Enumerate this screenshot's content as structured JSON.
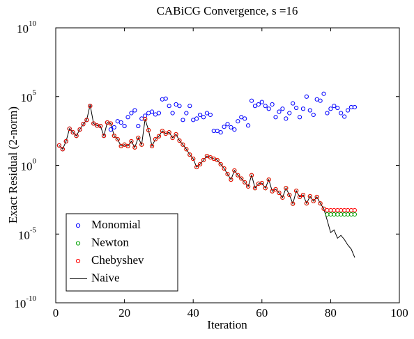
{
  "chart_data": {
    "type": "scatter",
    "title": "CABiCG Convergence, s =16",
    "xlabel": "Iteration",
    "ylabel": "Exact Residual (2-norm)",
    "xlim": [
      0,
      100
    ],
    "xticks": [
      0,
      20,
      40,
      60,
      80,
      100
    ],
    "ylim": [
      1e-10,
      10000000000.0
    ],
    "yscale": "log",
    "yticks": [
      {
        "value": 1e-10,
        "label": "10",
        "exponent": "-10"
      },
      {
        "value": 1e-05,
        "label": "10",
        "exponent": "-5"
      },
      {
        "value": 1,
        "label": "10",
        "exponent": "0"
      },
      {
        "value": 100000.0,
        "label": "10",
        "exponent": "5"
      },
      {
        "value": 10000000000.0,
        "label": "10",
        "exponent": "10"
      }
    ],
    "legend": "lower left",
    "x": [
      1,
      2,
      3,
      4,
      5,
      6,
      7,
      8,
      9,
      10,
      11,
      12,
      13,
      14,
      15,
      16,
      17,
      18,
      19,
      20,
      21,
      22,
      23,
      24,
      25,
      26,
      27,
      28,
      29,
      30,
      31,
      32,
      33,
      34,
      35,
      36,
      37,
      38,
      39,
      40,
      41,
      42,
      43,
      44,
      45,
      46,
      47,
      48,
      49,
      50,
      51,
      52,
      53,
      54,
      55,
      56,
      57,
      58,
      59,
      60,
      61,
      62,
      63,
      64,
      65,
      66,
      67,
      68,
      69,
      70,
      71,
      72,
      73,
      74,
      75,
      76,
      77,
      78,
      79,
      80,
      81,
      82,
      83,
      84,
      85,
      86,
      87
    ],
    "series": [
      {
        "name": "Monomial",
        "color": "#0000ff",
        "style": "markers",
        "values": [
          28,
          15,
          56,
          460,
          250,
          140,
          400,
          1000,
          2000,
          21000,
          1100,
          790,
          720,
          140,
          1300,
          400,
          580,
          1600,
          1300,
          720,
          3200,
          6300,
          10000,
          720,
          2500,
          4000,
          6300,
          7900,
          5000,
          6300,
          63000,
          71000,
          21000,
          6300,
          27000,
          21000,
          2000,
          6300,
          21000,
          2000,
          2500,
          4700,
          3200,
          6300,
          4700,
          320,
          320,
          250,
          630,
          1000,
          580,
          400,
          1600,
          3200,
          2500,
          790,
          50000,
          21000,
          27000,
          40000,
          21000,
          13000,
          27000,
          3200,
          7900,
          13000,
          2500,
          6300,
          32000,
          15000,
          3200,
          13000,
          100000,
          10000,
          4700,
          63000,
          50000,
          160000,
          6300,
          13000,
          21000,
          15000,
          6300,
          3500,
          10000,
          17000,
          17000
        ]
      },
      {
        "name": "Newton",
        "color": "#00a000",
        "style": "markers",
        "values": [
          28,
          15,
          56,
          460,
          250,
          140,
          400,
          1000,
          2000,
          21000,
          1100,
          790,
          720,
          140,
          1300,
          1100,
          140,
          79,
          25,
          32,
          25,
          56,
          20,
          100,
          32,
          2300,
          360,
          25,
          79,
          130,
          320,
          200,
          250,
          100,
          180,
          63,
          32,
          15,
          6,
          3,
          0.74,
          1.2,
          2.4,
          4.8,
          3.8,
          3,
          2.4,
          1.2,
          0.59,
          0.23,
          0.091,
          0.42,
          0.19,
          0.11,
          0.058,
          0.029,
          0.19,
          0.022,
          0.046,
          0.051,
          0.022,
          0.091,
          0.013,
          0.018,
          0.01,
          0.0045,
          0.022,
          0.007,
          0.0016,
          0.014,
          0.005,
          0.007,
          0.0017,
          0.0056,
          0.0025,
          0.005,
          0.0017,
          0.0007,
          0.00027,
          0.00027,
          0.00027,
          0.00027,
          0.00027,
          0.00027,
          0.00027,
          0.00027,
          0.00027
        ]
      },
      {
        "name": "Chebyshev",
        "color": "#ff0000",
        "style": "markers",
        "values": [
          28,
          15,
          56,
          460,
          250,
          140,
          400,
          1000,
          2000,
          21000,
          1100,
          790,
          720,
          140,
          1300,
          1100,
          140,
          79,
          25,
          32,
          25,
          56,
          20,
          100,
          32,
          2300,
          360,
          25,
          79,
          130,
          320,
          200,
          250,
          100,
          180,
          63,
          32,
          15,
          6,
          3,
          0.74,
          1.2,
          2.4,
          4.8,
          3.8,
          3,
          2.4,
          1.2,
          0.59,
          0.23,
          0.091,
          0.42,
          0.19,
          0.11,
          0.058,
          0.029,
          0.19,
          0.022,
          0.046,
          0.051,
          0.022,
          0.091,
          0.013,
          0.018,
          0.01,
          0.0045,
          0.022,
          0.007,
          0.0016,
          0.014,
          0.005,
          0.007,
          0.0017,
          0.0056,
          0.0025,
          0.005,
          0.0017,
          0.0007,
          0.00054,
          0.00054,
          0.00054,
          0.00054,
          0.00054,
          0.00054,
          0.00054,
          0.00054,
          0.00054
        ]
      },
      {
        "name": "Naive",
        "color": "#000000",
        "style": "line",
        "values": [
          28,
          15,
          56,
          460,
          250,
          140,
          400,
          1000,
          2000,
          25000,
          1100,
          790,
          720,
          140,
          1300,
          1100,
          140,
          79,
          25,
          32,
          25,
          56,
          20,
          100,
          32,
          2300,
          360,
          25,
          79,
          130,
          320,
          200,
          250,
          100,
          180,
          63,
          32,
          15,
          6,
          3,
          0.74,
          1.2,
          2.4,
          4.8,
          3.8,
          3,
          2.4,
          1.2,
          0.59,
          0.23,
          0.091,
          0.42,
          0.19,
          0.11,
          0.058,
          0.029,
          0.19,
          0.022,
          0.046,
          0.051,
          0.022,
          0.091,
          0.013,
          0.018,
          0.01,
          0.0045,
          0.022,
          0.007,
          0.0016,
          0.014,
          0.005,
          0.007,
          0.0017,
          0.0056,
          0.0025,
          0.005,
          0.0017,
          0.0007,
          0.0001,
          1.3e-05,
          2e-05,
          5e-06,
          8e-06,
          4e-06,
          1.6e-06,
          8e-07,
          2e-07
        ]
      }
    ]
  }
}
